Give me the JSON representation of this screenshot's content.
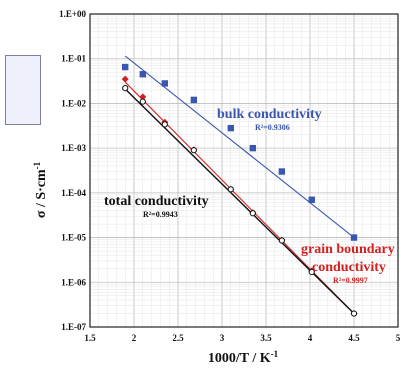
{
  "chart_data": {
    "type": "scatter",
    "xlabel": "1000/T  / K",
    "xlabel_sup": "-1",
    "ylabel": "σ  / S·cm",
    "ylabel_sup": "-1",
    "x_ticks": [
      "1.5",
      "2",
      "2.5",
      "3",
      "3.5",
      "4",
      "4.5",
      "5"
    ],
    "y_ticks": [
      "1.E+00",
      "1.E-01",
      "1.E-02",
      "1.E-03",
      "1.E-04",
      "1.E-05",
      "1.E-06",
      "1.E-07"
    ],
    "xlim": [
      1.5,
      5
    ],
    "ylim": [
      1e-07,
      1
    ],
    "y_scale": "log",
    "grid": true,
    "series": [
      {
        "name": "bulk conductivity",
        "r2": "R²=0.9306",
        "color": "#3a57b0",
        "marker": "square",
        "x": [
          1.9,
          2.1,
          2.35,
          2.68,
          3.1,
          3.35,
          3.68,
          4.02,
          4.5
        ],
        "y": [
          0.065,
          0.045,
          0.028,
          0.012,
          0.0028,
          0.001,
          0.0003,
          7e-05,
          1e-05
        ],
        "fit": {
          "x": [
            1.9,
            4.5
          ],
          "y": [
            0.115,
            1e-05
          ]
        }
      },
      {
        "name": "grain boundary conductivity",
        "label_lines": [
          "grain boundary",
          "conductivity"
        ],
        "r2": "R²=0.9997",
        "color": "#d42020",
        "marker": "diamond",
        "x": [
          1.9,
          2.1,
          2.35,
          2.68,
          3.1,
          3.35,
          3.68,
          4.02,
          4.5
        ],
        "y": [
          0.035,
          0.014,
          0.0038,
          0.00092,
          0.00012,
          3.6e-05,
          8.8e-06,
          1.8e-06,
          2e-07
        ],
        "fit": {
          "x": [
            1.9,
            4.5
          ],
          "y": [
            0.03,
            2e-07
          ]
        }
      },
      {
        "name": "total conductivity",
        "r2": "R²=0.9943",
        "color": "#111111",
        "marker": "circle",
        "x": [
          1.9,
          2.1,
          2.35,
          2.68,
          3.1,
          3.35,
          3.68,
          4.02,
          4.5
        ],
        "y": [
          0.022,
          0.011,
          0.0034,
          0.0009,
          0.00012,
          3.5e-05,
          8.6e-06,
          1.7e-06,
          2e-07
        ],
        "fit": {
          "x": [
            1.9,
            4.5
          ],
          "y": [
            0.021,
            2e-07
          ]
        }
      }
    ]
  }
}
